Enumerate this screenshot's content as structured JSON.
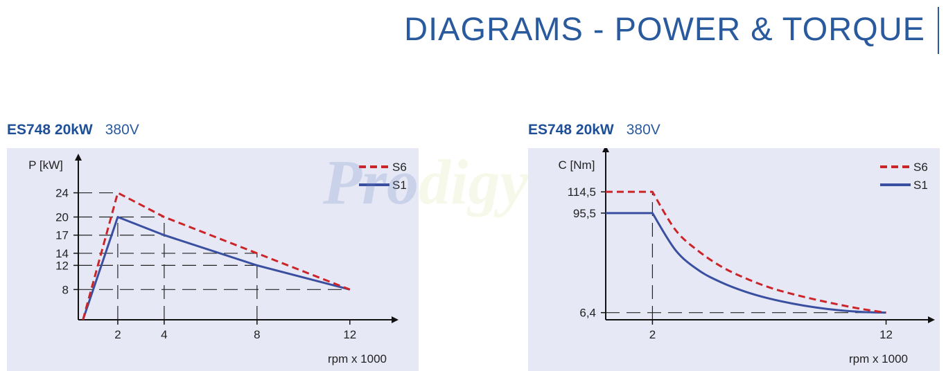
{
  "header": {
    "title": "DIAGRAMS - POWER & TORQUE"
  },
  "watermark": {
    "part1": "Pro",
    "part2": "digy"
  },
  "colors": {
    "s6": "#cc2529",
    "s1": "#3a4fa0",
    "panel": "#e6e8f5",
    "brand": "#1f4f96"
  },
  "chart_data": [
    {
      "type": "line",
      "model": "ES748 20kW",
      "voltage": "380V",
      "ylabel": "P [kW]",
      "xlabel": "rpm x 1000",
      "xlim": [
        0.3,
        13.2
      ],
      "ylim": [
        3,
        27.5
      ],
      "x_ticks": [
        {
          "v": 2,
          "label": "2"
        },
        {
          "v": 4,
          "label": "4"
        },
        {
          "v": 8,
          "label": "8"
        },
        {
          "v": 12,
          "label": "12"
        }
      ],
      "y_ticks": [
        {
          "v": 24,
          "label": "24"
        },
        {
          "v": 20,
          "label": "20"
        },
        {
          "v": 17,
          "label": "17"
        },
        {
          "v": 14,
          "label": "14"
        },
        {
          "v": 12,
          "label": "12"
        },
        {
          "v": 8,
          "label": "8"
        }
      ],
      "legend": "top-right",
      "series": [
        {
          "name": "S6",
          "style": "dashed",
          "x": [
            0.5,
            2,
            4,
            8,
            12
          ],
          "y": [
            3,
            24,
            20,
            14,
            8
          ]
        },
        {
          "name": "S1",
          "style": "solid",
          "x": [
            0.5,
            2,
            4,
            8,
            12
          ],
          "y": [
            3,
            20,
            17,
            12,
            8
          ]
        }
      ]
    },
    {
      "type": "line",
      "model": "ES748 20kW",
      "voltage": "380V",
      "ylabel": "C [Nm]",
      "xlabel": "rpm x 1000",
      "xlim": [
        0,
        13.2
      ],
      "ylim": [
        0,
        140
      ],
      "x_ticks": [
        {
          "v": 2,
          "label": "2"
        },
        {
          "v": 12,
          "label": "12"
        }
      ],
      "y_ticks": [
        {
          "v": 114.5,
          "label": "114,5"
        },
        {
          "v": 95.5,
          "label": "95,5"
        },
        {
          "v": 6.4,
          "label": "6,4"
        }
      ],
      "legend": "top-right",
      "series": [
        {
          "name": "S6",
          "style": "dashed",
          "x": [
            0,
            2,
            3,
            4,
            5,
            6,
            7,
            8,
            9,
            10,
            11,
            12
          ],
          "y": [
            114.5,
            114.5,
            80,
            61,
            47,
            37,
            29,
            23,
            18,
            13.5,
            9.5,
            6.4
          ]
        },
        {
          "name": "S1",
          "style": "solid",
          "x": [
            0,
            2,
            3,
            4,
            5,
            6,
            7,
            8,
            9,
            10,
            11,
            12
          ],
          "y": [
            95.5,
            95.5,
            62,
            44,
            33,
            25,
            19,
            14.5,
            11,
            8.5,
            7,
            6.4
          ]
        }
      ]
    }
  ]
}
